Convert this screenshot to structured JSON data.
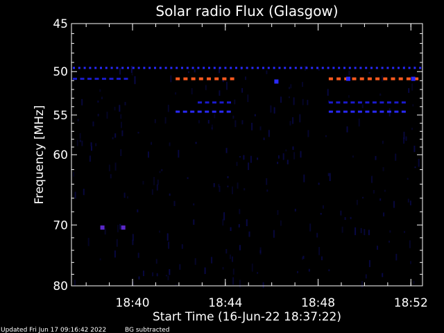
{
  "chart_data": {
    "type": "heatmap",
    "title": "Solar radio Flux (Glasgow)",
    "xlabel": "Start Time (16-Jun-22 18:37:22)",
    "ylabel": "Frequency [MHz]",
    "xlim": [
      "18:37:22",
      "18:52:30"
    ],
    "ylim": [
      45,
      80
    ],
    "y_inverted": true,
    "y_scale": "log",
    "x_ticks": [
      "18:40",
      "18:44",
      "18:48",
      "18:52"
    ],
    "y_ticks": [
      45,
      50,
      55,
      60,
      70,
      80
    ],
    "grid": false,
    "colors": {
      "background": "#000000",
      "axes": "#ffffff",
      "text": "#ffffff",
      "band_strong": "#ff5a1e",
      "band_medium": "#2a2aff",
      "band_faint": "#1a1acc",
      "noise": "#0a0a55",
      "violet_spot": "#5a28c8"
    },
    "features": [
      {
        "kind": "dashed-band",
        "freq_mhz": 49.6,
        "start": "18:37:22",
        "end": "18:52:30",
        "intensity": "medium"
      },
      {
        "kind": "dashed-band",
        "freq_mhz": 50.8,
        "start": "18:37:22",
        "end": "18:40:00",
        "intensity": "faint"
      },
      {
        "kind": "dashed-band",
        "freq_mhz": 50.8,
        "start": "18:41:48",
        "end": "18:44:33",
        "intensity": "strong"
      },
      {
        "kind": "dashed-band",
        "freq_mhz": 50.8,
        "start": "18:48:24",
        "end": "18:52:30",
        "intensity": "strong"
      },
      {
        "kind": "dashed-band",
        "freq_mhz": 53.5,
        "start": "18:42:45",
        "end": "18:44:33",
        "intensity": "faint"
      },
      {
        "kind": "dashed-band",
        "freq_mhz": 53.5,
        "start": "18:48:24",
        "end": "18:52:00",
        "intensity": "faint"
      },
      {
        "kind": "dashed-band",
        "freq_mhz": 54.6,
        "start": "18:41:48",
        "end": "18:44:33",
        "intensity": "medium"
      },
      {
        "kind": "dashed-band",
        "freq_mhz": 54.6,
        "start": "18:48:24",
        "end": "18:52:00",
        "intensity": "medium"
      },
      {
        "kind": "spot",
        "freq_mhz": 70.4,
        "time": "18:38:42",
        "intensity": "violet"
      },
      {
        "kind": "spot",
        "freq_mhz": 70.4,
        "time": "18:39:36",
        "intensity": "violet"
      },
      {
        "kind": "spot",
        "freq_mhz": 51.1,
        "time": "18:46:12",
        "intensity": "medium"
      },
      {
        "kind": "spot",
        "freq_mhz": 50.8,
        "time": "18:49:18",
        "intensity": "medium"
      },
      {
        "kind": "spot",
        "freq_mhz": 50.8,
        "time": "18:52:06",
        "intensity": "medium"
      }
    ]
  },
  "footer": {
    "updated": "Updated Fri Jun 17 09:16:42 2022",
    "bg_note": "BG subtracted"
  }
}
